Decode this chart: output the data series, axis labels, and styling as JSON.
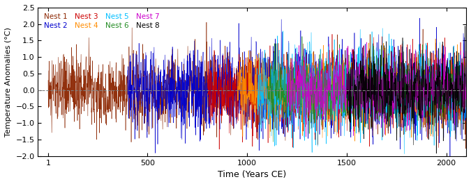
{
  "title": "",
  "xlabel": "Time (Years CE)",
  "ylabel": "Temperature Anomalies (°C)",
  "xlim": [
    -50,
    2100
  ],
  "ylim": [
    -2.0,
    2.5
  ],
  "yticks": [
    -2.0,
    -1.5,
    -1.0,
    -0.5,
    0.0,
    0.5,
    1.0,
    1.5,
    2.0,
    2.5
  ],
  "xticks": [
    1,
    500,
    1000,
    1500,
    2000
  ],
  "dashed_line_y": 0.0,
  "background_color": "#ffffff",
  "nest_colors": [
    "#8B2500",
    "#0000CD",
    "#CC0000",
    "#FF8C00",
    "#00BFFF",
    "#228B22",
    "#CC00CC",
    "#000000"
  ],
  "nest_labels": [
    "Nest 1",
    "Nest 2",
    "Nest 3",
    "Nest 4",
    "Nest 5",
    "Nest 6",
    "Nest 7",
    "Nest 8"
  ],
  "nest_start": [
    1,
    400,
    800,
    950,
    1050,
    1100,
    1200,
    1500
  ],
  "nest_end": [
    2100,
    2100,
    2100,
    2100,
    2100,
    2100,
    2100,
    2100
  ],
  "nest_amplitude": [
    0.55,
    0.65,
    0.55,
    0.5,
    0.65,
    0.45,
    0.5,
    0.6
  ],
  "seed": 42,
  "linewidth": 0.4
}
